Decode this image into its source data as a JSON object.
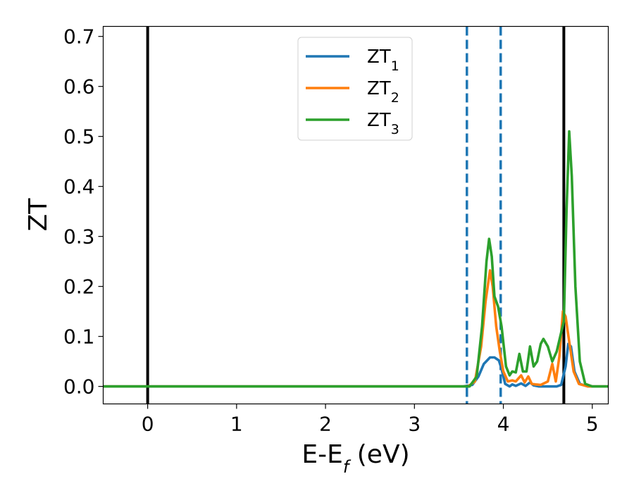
{
  "chart_data": {
    "type": "line",
    "xlabel": "E-E",
    "xlabel_sub": "f",
    "xlabel_unit": " (eV)",
    "ylabel": "ZT",
    "xlim": [
      -0.5,
      5.18
    ],
    "ylim": [
      -0.035,
      0.72
    ],
    "xticks": [
      0,
      1,
      2,
      3,
      4,
      5
    ],
    "xtick_labels": [
      "0",
      "1",
      "2",
      "3",
      "4",
      "5"
    ],
    "yticks": [
      0.0,
      0.1,
      0.2,
      0.3,
      0.4,
      0.5,
      0.6,
      0.7
    ],
    "ytick_labels": [
      "0.0",
      "0.1",
      "0.2",
      "0.3",
      "0.4",
      "0.5",
      "0.6",
      "0.7"
    ],
    "grid": false,
    "legend_position": "top-center",
    "vlines": [
      {
        "x": 0.0,
        "style": "solid",
        "color": "#000000"
      },
      {
        "x": 4.68,
        "style": "solid",
        "color": "#000000"
      },
      {
        "x": 3.59,
        "style": "dashed",
        "color": "#1f77b4"
      },
      {
        "x": 3.97,
        "style": "dashed",
        "color": "#1f77b4"
      }
    ],
    "series": [
      {
        "name": "ZT",
        "name_sub": "1",
        "color": "#1f77b4",
        "points": [
          [
            -0.5,
            0
          ],
          [
            3.55,
            0
          ],
          [
            3.65,
            0.003
          ],
          [
            3.72,
            0.02
          ],
          [
            3.78,
            0.045
          ],
          [
            3.85,
            0.058
          ],
          [
            3.9,
            0.058
          ],
          [
            3.95,
            0.052
          ],
          [
            3.98,
            0.035
          ],
          [
            4.02,
            0.005
          ],
          [
            4.07,
            0.0
          ],
          [
            4.1,
            0.004
          ],
          [
            4.14,
            0.001
          ],
          [
            4.2,
            0.006
          ],
          [
            4.25,
            0.001
          ],
          [
            4.3,
            0.008
          ],
          [
            4.34,
            0.002
          ],
          [
            4.4,
            0.0
          ],
          [
            4.6,
            0.0
          ],
          [
            4.65,
            0.003
          ],
          [
            4.7,
            0.04
          ],
          [
            4.73,
            0.085
          ],
          [
            4.76,
            0.08
          ],
          [
            4.8,
            0.03
          ],
          [
            4.86,
            0.005
          ],
          [
            4.95,
            0
          ],
          [
            5.18,
            0
          ]
        ]
      },
      {
        "name": "ZT",
        "name_sub": "2",
        "color": "#ff7f0e",
        "points": [
          [
            -0.5,
            0
          ],
          [
            3.6,
            0
          ],
          [
            3.68,
            0.01
          ],
          [
            3.75,
            0.08
          ],
          [
            3.8,
            0.17
          ],
          [
            3.85,
            0.232
          ],
          [
            3.88,
            0.2
          ],
          [
            3.92,
            0.12
          ],
          [
            3.96,
            0.07
          ],
          [
            4.0,
            0.03
          ],
          [
            4.05,
            0.01
          ],
          [
            4.1,
            0.012
          ],
          [
            4.14,
            0.01
          ],
          [
            4.2,
            0.022
          ],
          [
            4.24,
            0.008
          ],
          [
            4.28,
            0.02
          ],
          [
            4.32,
            0.005
          ],
          [
            4.36,
            0.004
          ],
          [
            4.42,
            0.003
          ],
          [
            4.5,
            0.01
          ],
          [
            4.55,
            0.045
          ],
          [
            4.59,
            0.01
          ],
          [
            4.63,
            0.06
          ],
          [
            4.67,
            0.15
          ],
          [
            4.7,
            0.14
          ],
          [
            4.74,
            0.09
          ],
          [
            4.79,
            0.03
          ],
          [
            4.85,
            0.005
          ],
          [
            4.95,
            0
          ],
          [
            5.18,
            0
          ]
        ]
      },
      {
        "name": "ZT",
        "name_sub": "3",
        "color": "#2ca02c",
        "points": [
          [
            -0.5,
            0
          ],
          [
            3.62,
            0
          ],
          [
            3.7,
            0.02
          ],
          [
            3.76,
            0.12
          ],
          [
            3.81,
            0.25
          ],
          [
            3.84,
            0.295
          ],
          [
            3.87,
            0.26
          ],
          [
            3.9,
            0.18
          ],
          [
            3.94,
            0.16
          ],
          [
            3.98,
            0.12
          ],
          [
            4.03,
            0.04
          ],
          [
            4.07,
            0.022
          ],
          [
            4.1,
            0.03
          ],
          [
            4.14,
            0.028
          ],
          [
            4.18,
            0.065
          ],
          [
            4.22,
            0.03
          ],
          [
            4.26,
            0.03
          ],
          [
            4.3,
            0.08
          ],
          [
            4.34,
            0.04
          ],
          [
            4.38,
            0.05
          ],
          [
            4.42,
            0.085
          ],
          [
            4.45,
            0.095
          ],
          [
            4.5,
            0.08
          ],
          [
            4.55,
            0.05
          ],
          [
            4.6,
            0.07
          ],
          [
            4.64,
            0.1
          ],
          [
            4.68,
            0.13
          ],
          [
            4.71,
            0.35
          ],
          [
            4.74,
            0.51
          ],
          [
            4.77,
            0.42
          ],
          [
            4.81,
            0.2
          ],
          [
            4.86,
            0.05
          ],
          [
            4.92,
            0.005
          ],
          [
            5.0,
            0
          ],
          [
            5.18,
            0
          ]
        ]
      }
    ]
  }
}
